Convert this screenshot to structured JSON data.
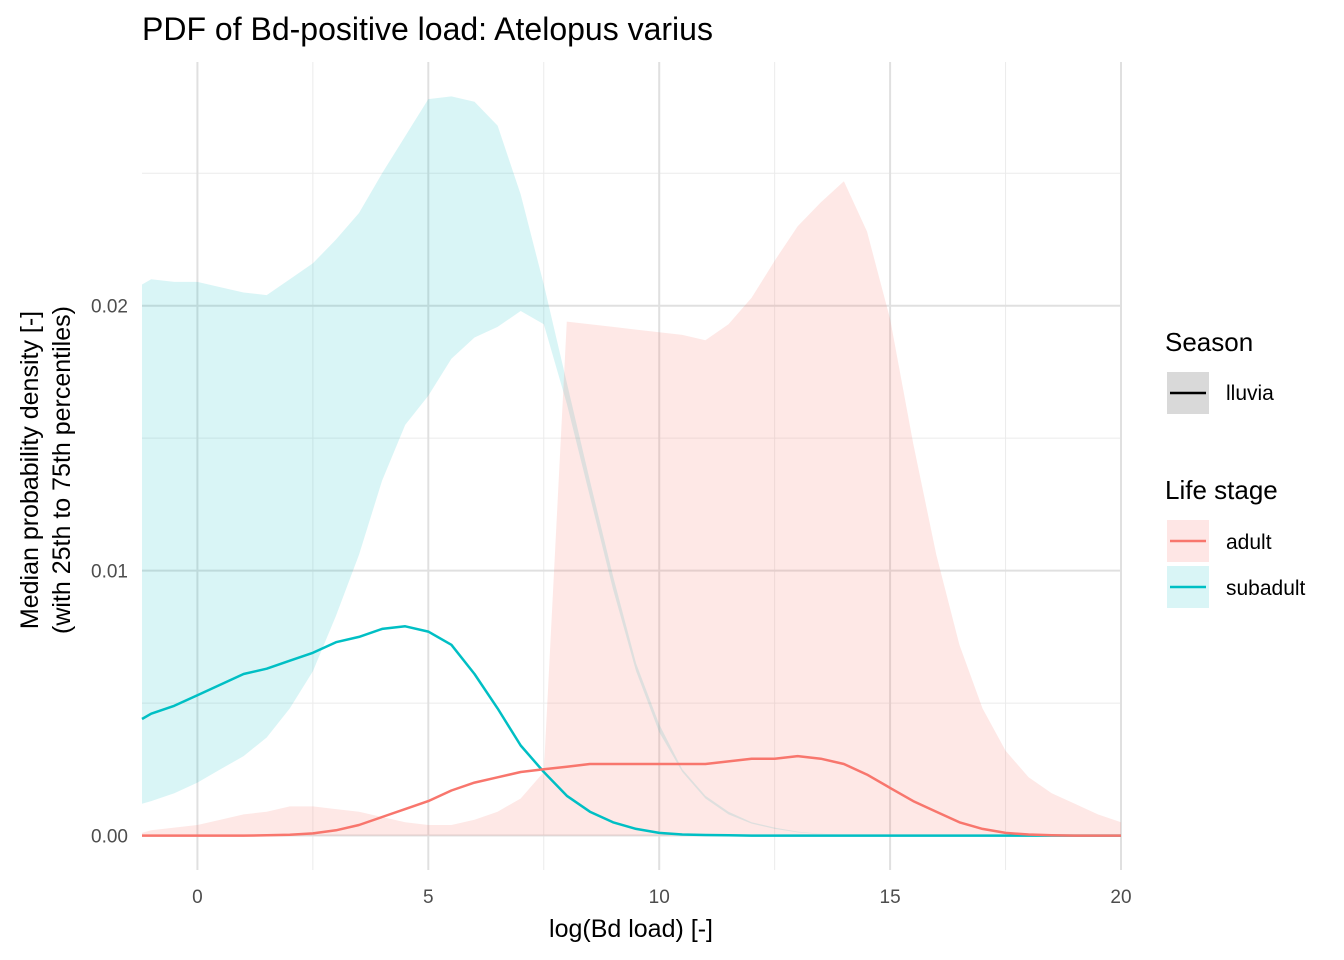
{
  "chart_data": {
    "type": "area",
    "title": "PDF of Bd-positive load: Atelopus varius",
    "xlabel": "log(Bd load) [-]",
    "ylabel_lines": [
      "Median probability density [-]",
      "(with 25th to 75th percentiles)"
    ],
    "xlim": [
      -1.2,
      20
    ],
    "ylim": [
      -0.0013,
      0.0292
    ],
    "x_ticks": [
      0,
      5,
      10,
      15,
      20
    ],
    "x_tick_labels": [
      "0",
      "5",
      "10",
      "15",
      "20"
    ],
    "y_ticks": [
      0,
      0.01,
      0.02
    ],
    "y_tick_labels": [
      "0.00",
      "0.01",
      "0.02"
    ],
    "grid": true,
    "legend_position": "right",
    "legends": [
      {
        "title": "Season",
        "entries": [
          {
            "label": "lluvia",
            "color": "#000000"
          }
        ]
      },
      {
        "title": "Life stage",
        "entries": [
          {
            "label": "adult",
            "color": "#F8766D"
          },
          {
            "label": "subadult",
            "color": "#00BFC4"
          }
        ]
      }
    ],
    "series": [
      {
        "name": "subadult",
        "color": "#00BFC4",
        "fill": "#00BFC4",
        "x": [
          -1.2,
          -1,
          -0.5,
          0,
          0.5,
          1,
          1.5,
          2,
          2.5,
          3,
          3.5,
          4,
          4.5,
          5,
          5.5,
          6,
          6.5,
          7,
          7.5,
          8,
          8.5,
          9,
          9.5,
          10,
          10.5,
          11,
          11.5,
          12,
          12.5,
          13,
          13.5,
          14,
          14.5,
          15,
          15.5,
          16,
          16.5,
          17,
          17.5,
          18,
          18.5,
          19,
          19.5,
          20
        ],
        "median": [
          0.0044,
          0.0046,
          0.0049,
          0.0053,
          0.0057,
          0.0061,
          0.0063,
          0.0066,
          0.0069,
          0.0073,
          0.0075,
          0.0078,
          0.0079,
          0.0077,
          0.0072,
          0.0061,
          0.0048,
          0.0034,
          0.0024,
          0.0015,
          0.0009,
          0.0005,
          0.00025,
          0.0001,
          4e-05,
          2e-05,
          1e-05,
          0,
          0,
          0,
          0,
          0,
          0,
          0,
          0,
          0,
          0,
          0,
          0,
          0,
          0,
          0,
          0,
          0
        ],
        "p25": [
          0.0012,
          0.0013,
          0.0016,
          0.002,
          0.0025,
          0.003,
          0.0037,
          0.0048,
          0.0062,
          0.0083,
          0.0106,
          0.0134,
          0.0155,
          0.0166,
          0.018,
          0.0188,
          0.0192,
          0.0198,
          0.0193,
          0.0163,
          0.0128,
          0.0093,
          0.0062,
          0.0039,
          0.0024,
          0.0014,
          0.0008,
          0.00045,
          0.00025,
          0.00012,
          6e-05,
          3e-05,
          1e-05,
          0,
          0,
          0,
          0,
          0,
          0,
          0,
          0,
          0,
          0,
          0
        ],
        "p75": [
          0.0208,
          0.021,
          0.0209,
          0.0209,
          0.0207,
          0.0205,
          0.0204,
          0.021,
          0.0216,
          0.0225,
          0.0235,
          0.025,
          0.0264,
          0.0278,
          0.0279,
          0.0277,
          0.0268,
          0.0242,
          0.0208,
          0.0171,
          0.0134,
          0.0098,
          0.0065,
          0.0042,
          0.0025,
          0.0015,
          0.0009,
          0.0005,
          0.0003,
          0.00015,
          7e-05,
          3e-05,
          1e-05,
          0,
          0,
          0,
          0,
          0,
          0,
          0,
          0,
          0,
          0,
          0
        ]
      },
      {
        "name": "adult",
        "color": "#F8766D",
        "fill": "#F8766D",
        "x": [
          -1.2,
          -1,
          -0.5,
          0,
          0.5,
          1,
          1.5,
          2,
          2.5,
          3,
          3.5,
          4,
          4.5,
          5,
          5.5,
          6,
          6.5,
          7,
          7.5,
          8,
          8.5,
          9,
          9.5,
          10,
          10.5,
          11,
          11.5,
          12,
          12.5,
          13,
          13.5,
          14,
          14.5,
          15,
          15.5,
          16,
          16.5,
          17,
          17.5,
          18,
          18.5,
          19,
          19.5,
          20
        ],
        "median": [
          0,
          0,
          0,
          0,
          0,
          0,
          1e-05,
          3e-05,
          8e-05,
          0.0002,
          0.0004,
          0.0007,
          0.001,
          0.0013,
          0.0017,
          0.002,
          0.0022,
          0.0024,
          0.0025,
          0.0026,
          0.0027,
          0.0027,
          0.0027,
          0.0027,
          0.0027,
          0.0027,
          0.0028,
          0.0029,
          0.0029,
          0.003,
          0.0029,
          0.0027,
          0.0023,
          0.0018,
          0.0013,
          0.0009,
          0.0005,
          0.00025,
          0.0001,
          4e-05,
          1e-05,
          0,
          0,
          0
        ],
        "p25": [
          0,
          0,
          0,
          0,
          0,
          0,
          0,
          0,
          0,
          0,
          0,
          0,
          0,
          0,
          0,
          0,
          0,
          0,
          0,
          0,
          0,
          0,
          0,
          0,
          0,
          0,
          0,
          0,
          0,
          0,
          0,
          0,
          0,
          0,
          0,
          0,
          0,
          0,
          0,
          0,
          0,
          0,
          0,
          0
        ],
        "p75": [
          0.0001,
          0.0002,
          0.0003,
          0.0004,
          0.0006,
          0.0008,
          0.0009,
          0.0011,
          0.0011,
          0.001,
          0.0009,
          0.0007,
          0.0005,
          0.0004,
          0.0004,
          0.0006,
          0.0009,
          0.0014,
          0.0024,
          0.0194,
          0.0193,
          0.0192,
          0.0191,
          0.019,
          0.0189,
          0.0187,
          0.0193,
          0.0203,
          0.0217,
          0.023,
          0.0239,
          0.0247,
          0.0228,
          0.0195,
          0.0148,
          0.0106,
          0.0072,
          0.0048,
          0.0032,
          0.0022,
          0.0016,
          0.0012,
          0.0008,
          0.0005
        ]
      }
    ]
  }
}
